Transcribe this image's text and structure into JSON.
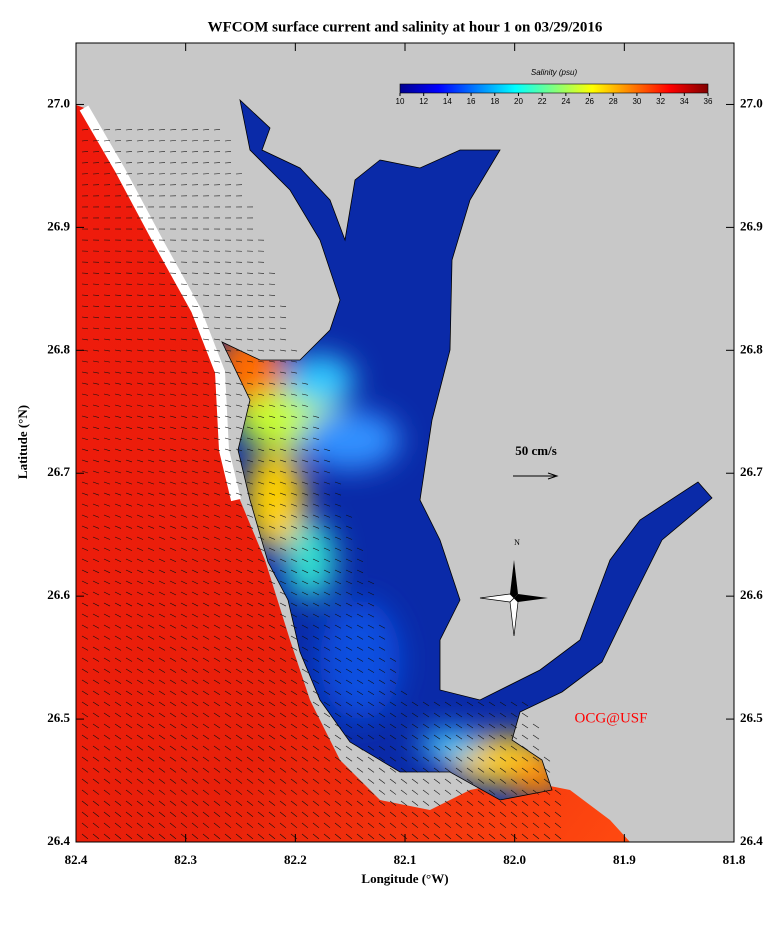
{
  "title": "WFCOM surface current and salinity at hour 1 on 03/29/2016",
  "x_axis": {
    "label": "Longitude (°W)",
    "lim": [
      82.4,
      81.8
    ],
    "ticks": [
      82.4,
      82.3,
      82.2,
      82.1,
      {
        "value": 82,
        "label": "82.0"
      },
      81.9,
      81.8
    ]
  },
  "y_axis": {
    "label": "Latitude (°N)",
    "lim": [
      26.4,
      27.05
    ],
    "ticks": [
      26.4,
      26.5,
      26.6,
      26.7,
      26.8,
      26.9,
      {
        "value": 27,
        "label": "27.0"
      }
    ]
  },
  "colorbar": {
    "label": "Salinity (psu)",
    "lim": [
      10,
      36
    ],
    "ticks": [
      10,
      12,
      14,
      16,
      18,
      20,
      22,
      24,
      26,
      28,
      30,
      32,
      34,
      36
    ],
    "colors": [
      "#00008f",
      "#0000ff",
      "#0080ff",
      "#00ffff",
      "#80ff80",
      "#ffff00",
      "#ff8000",
      "#ff0000",
      "#800000"
    ]
  },
  "scale_arrow": {
    "label": "50 cm/s"
  },
  "compass": {
    "label": "N"
  },
  "credit": "OCG@USF"
}
